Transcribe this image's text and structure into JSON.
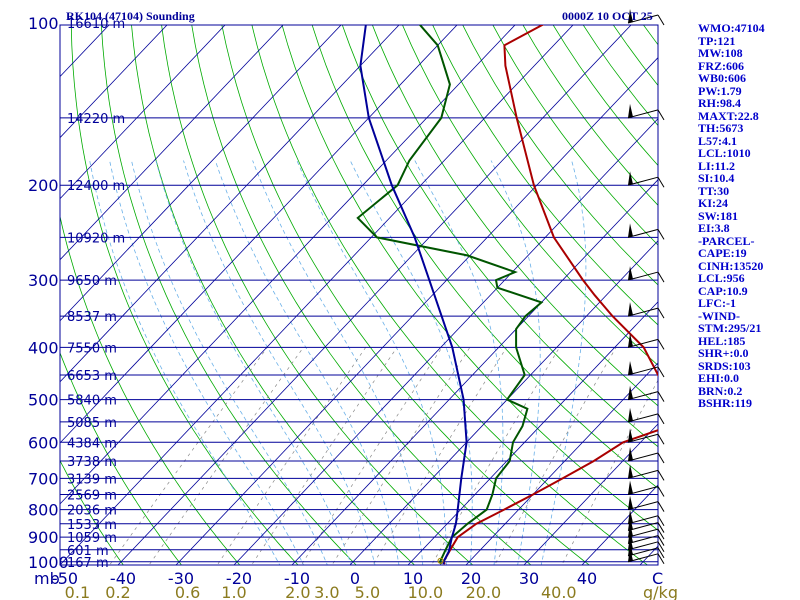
{
  "chart_data": {
    "type": "line",
    "title": "RK104 (47104) Sounding",
    "time": "0000Z 10 OCT 25",
    "x_axis": {
      "unit": "C",
      "ticks": [
        -50,
        -40,
        -30,
        -20,
        -10,
        0,
        10,
        20,
        30,
        40
      ],
      "range": [
        -50,
        50
      ]
    },
    "y_axis": {
      "unit": "mb",
      "ticks": [
        100,
        200,
        300,
        400,
        500,
        600,
        700,
        800,
        900,
        1000
      ],
      "range": [
        100,
        1050
      ]
    },
    "mixing_ratio_axis": {
      "unit": "g/kg",
      "labels": [
        "0.1",
        "0.2",
        "0.6",
        "1.0",
        "2.0",
        "3.0",
        "5.0",
        "10.0",
        "20.0",
        "40.0"
      ],
      "label_temps": [
        -47,
        -40,
        -28,
        -20,
        -9,
        -4,
        3,
        13,
        23,
        36
      ]
    },
    "height_labels": [
      {
        "p": 100,
        "label": "16610 m"
      },
      {
        "p": 150,
        "label": "14220 m"
      },
      {
        "p": 200,
        "label": "12400 m"
      },
      {
        "p": 250,
        "label": "10920 m"
      },
      {
        "p": 300,
        "label": "9650 m"
      },
      {
        "p": 350,
        "label": "8537 m"
      },
      {
        "p": 400,
        "label": "7550 m"
      },
      {
        "p": 450,
        "label": "6653 m"
      },
      {
        "p": 500,
        "label": "5840 m"
      },
      {
        "p": 550,
        "label": "5085 m"
      },
      {
        "p": 600,
        "label": "4384 m"
      },
      {
        "p": 650,
        "label": "3738 m"
      },
      {
        "p": 700,
        "label": "3139 m"
      },
      {
        "p": 750,
        "label": "2569 m"
      },
      {
        "p": 800,
        "label": "2036 m"
      },
      {
        "p": 850,
        "label": "1533 m"
      },
      {
        "p": 900,
        "label": "1059 m"
      },
      {
        "p": 950,
        "label": "601 m"
      },
      {
        "p": 1000,
        "label": "167 m"
      }
    ],
    "series": [
      {
        "name": "Temperature",
        "color": "#aa0000",
        "points": [
          [
            1010,
            16.2
          ],
          [
            1000,
            15.6
          ],
          [
            950,
            14.8
          ],
          [
            900,
            14.0
          ],
          [
            850,
            15.0
          ],
          [
            800,
            17.5
          ],
          [
            750,
            20.0
          ],
          [
            700,
            22.5
          ],
          [
            650,
            25.0
          ],
          [
            600,
            27.0
          ],
          [
            560,
            32.4
          ],
          [
            530,
            32.0
          ],
          [
            500,
            29.0
          ],
          [
            450,
            22.0
          ],
          [
            400,
            15.0
          ],
          [
            350,
            4.5
          ],
          [
            320,
            -2.0
          ],
          [
            300,
            -6.5
          ],
          [
            250,
            -18.5
          ],
          [
            200,
            -30.5
          ],
          [
            150,
            -44.5
          ],
          [
            120,
            -55.0
          ],
          [
            110,
            -58.5
          ],
          [
            100,
            -55.0
          ],
          [
            95,
            -54.0
          ]
        ]
      },
      {
        "name": "Dewpoint",
        "color": "#005500",
        "points": [
          [
            1010,
            15.6
          ],
          [
            1000,
            15.0
          ],
          [
            950,
            14.0
          ],
          [
            900,
            13.0
          ],
          [
            850,
            13.5
          ],
          [
            800,
            14.5
          ],
          [
            750,
            13.0
          ],
          [
            700,
            11.0
          ],
          [
            650,
            10.5
          ],
          [
            600,
            8.0
          ],
          [
            560,
            7.0
          ],
          [
            520,
            5.0
          ],
          [
            500,
            0.0
          ],
          [
            450,
            -1.0
          ],
          [
            400,
            -7.0
          ],
          [
            370,
            -10.0
          ],
          [
            350,
            -10.5
          ],
          [
            330,
            -10.0
          ],
          [
            310,
            -20.0
          ],
          [
            300,
            -21.5
          ],
          [
            290,
            -19.5
          ],
          [
            270,
            -30.5
          ],
          [
            250,
            -49.0
          ],
          [
            230,
            -55.5
          ],
          [
            200,
            -54.0
          ],
          [
            180,
            -56.0
          ],
          [
            150,
            -57.5
          ],
          [
            130,
            -61.5
          ],
          [
            110,
            -70.0
          ],
          [
            100,
            -77.0
          ],
          [
            95,
            -79.0
          ]
        ]
      },
      {
        "name": "Parcel",
        "color": "#000099",
        "points": [
          [
            1010,
            16.0
          ],
          [
            1000,
            15.6
          ],
          [
            956,
            14.8
          ],
          [
            900,
            13.0
          ],
          [
            850,
            11.5
          ],
          [
            800,
            9.5
          ],
          [
            700,
            5.0
          ],
          [
            600,
            0.0
          ],
          [
            500,
            -7.5
          ],
          [
            400,
            -18.0
          ],
          [
            300,
            -33.0
          ],
          [
            250,
            -42.5
          ],
          [
            200,
            -55.0
          ],
          [
            150,
            -70.0
          ],
          [
            120,
            -80.0
          ],
          [
            100,
            -86.0
          ]
        ]
      }
    ],
    "wind_barbs_pressures": [
      1000,
      975,
      950,
      925,
      900,
      875,
      850,
      800,
      750,
      700,
      650,
      600,
      550,
      500,
      450,
      400,
      350,
      300,
      250,
      200,
      150,
      100
    ]
  },
  "indices": [
    "WMO:47104",
    "TP:121",
    "MW:108",
    "FRZ:606",
    "WB0:606",
    "PW:1.79",
    "RH:98.4",
    "MAXT:22.8",
    "TH:5673",
    "L57:4.1",
    "LCL:1010",
    "LI:11.2",
    "SI:10.4",
    "TT:30",
    "KI:24",
    "SW:181",
    "EI:3.8",
    "-PARCEL-",
    "CAPE:19",
    "CINH:13520",
    "LCL:956",
    "CAP:10.9",
    "LFC:-1",
    "-WIND-",
    "STM:295/21",
    "HEL:185",
    "SHR+:0.0",
    "SRDS:103",
    "EHI:0.0",
    "BRN:0.2",
    "BSHR:119"
  ],
  "colors": {
    "isobar": "#000099",
    "isotherm": "#000099",
    "dry_adiabat": "#00aa00",
    "moist_adiabat": "#6ab0e8",
    "mixing_ratio": "#888888",
    "text": "#0000cc",
    "mixratio_label": "#8b7b1f"
  }
}
